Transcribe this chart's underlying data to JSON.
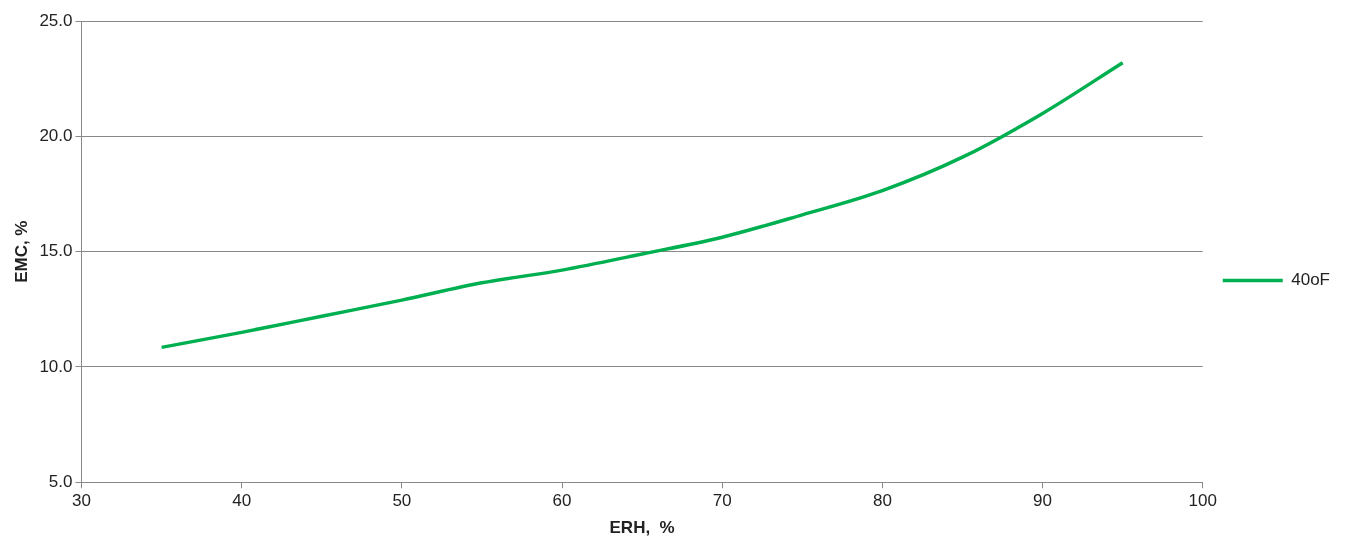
{
  "chart_data": {
    "type": "line",
    "xlabel": "ERH,  %",
    "ylabel": "EMC, %",
    "series": [
      {
        "name": "40oF",
        "color": "#00b050",
        "x": [
          35,
          40,
          45,
          50,
          55,
          60,
          65,
          70,
          75,
          80,
          85,
          90,
          95
        ],
        "values": [
          10.85,
          11.5,
          12.2,
          12.9,
          13.65,
          14.2,
          14.9,
          15.63,
          16.6,
          17.65,
          19.1,
          21.0,
          23.2
        ]
      }
    ],
    "xlim": [
      30,
      100
    ],
    "xticks": [
      30,
      40,
      50,
      60,
      70,
      80,
      90,
      100
    ],
    "ylim": [
      5,
      25
    ],
    "yticks": [
      {
        "value": 5,
        "label": "5.0"
      },
      {
        "value": 10,
        "label": "10.0"
      },
      {
        "value": 15,
        "label": "15.0"
      },
      {
        "value": 20,
        "label": "20.0"
      },
      {
        "value": 25,
        "label": "25.0"
      }
    ],
    "grid": "y",
    "legend": "right",
    "marker": "none",
    "line_style": "solid"
  }
}
